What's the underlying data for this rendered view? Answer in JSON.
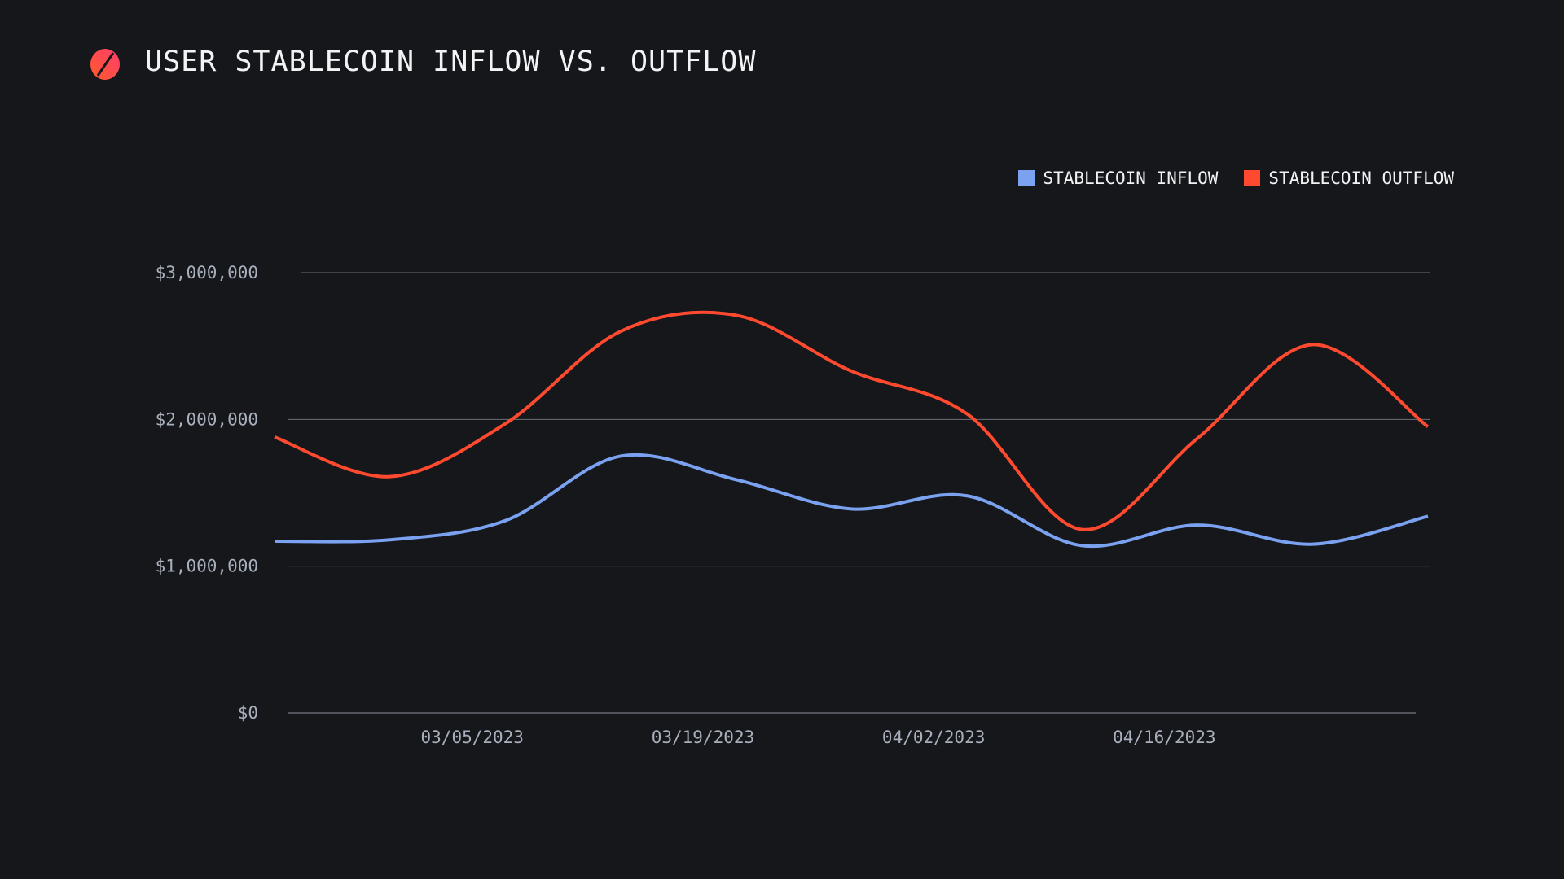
{
  "header": {
    "title": "USER STABLECOIN INFLOW VS. OUTFLOW"
  },
  "chart_data": {
    "type": "line",
    "title": "USER STABLECOIN INFLOW VS. OUTFLOW",
    "xlabel": "",
    "ylabel": "",
    "ylim": [
      0,
      3000000
    ],
    "yticks": [
      0,
      1000000,
      2000000,
      3000000
    ],
    "ytick_labels": [
      "$0",
      "$1,000,000",
      "$2,000,000",
      "$3,000,000"
    ],
    "xticks": [
      "2023-03-05",
      "2023-03-19",
      "2023-04-02",
      "2023-04-16"
    ],
    "xtick_labels": [
      "03/05/2023",
      "03/19/2023",
      "04/02/2023",
      "04/16/2023"
    ],
    "x": [
      "2023-02-21",
      "2023-02-28",
      "2023-03-07",
      "2023-03-14",
      "2023-03-21",
      "2023-03-28",
      "2023-04-04",
      "2023-04-11",
      "2023-04-18",
      "2023-04-25",
      "2023-05-02"
    ],
    "grid": true,
    "legend_position": "top-right",
    "series": [
      {
        "name": "STABLECOIN INFLOW",
        "color": "#7aa2f0",
        "values": [
          1170000,
          1180000,
          1310000,
          1750000,
          1590000,
          1390000,
          1480000,
          1140000,
          1280000,
          1150000,
          1340000
        ]
      },
      {
        "name": "STABLECOIN OUTFLOW",
        "color": "#ff4a30",
        "values": [
          1880000,
          1610000,
          1970000,
          2600000,
          2710000,
          2330000,
          2040000,
          1250000,
          1870000,
          2510000,
          1950000
        ]
      }
    ]
  }
}
